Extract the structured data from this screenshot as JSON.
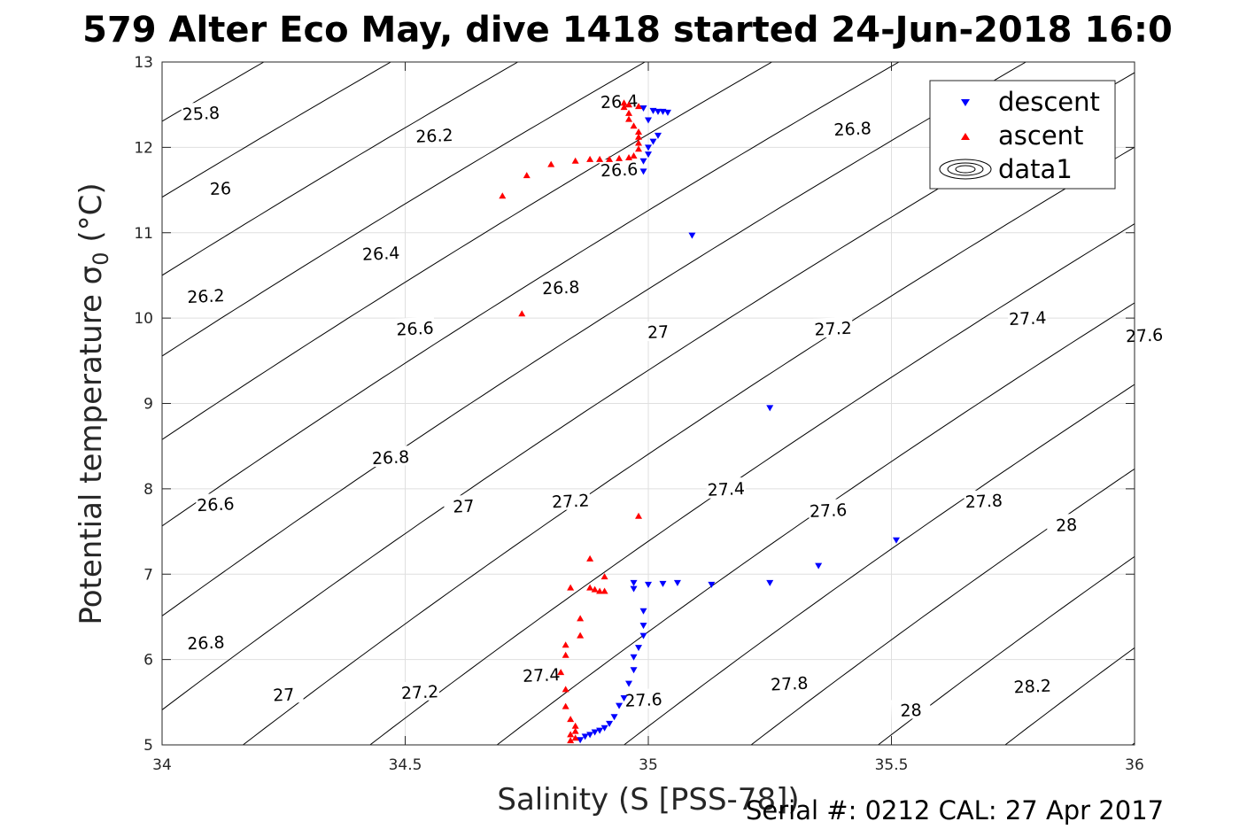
{
  "title": "579 Alter Eco May, dive 1418 started 24-Jun-2018 16:0",
  "footer": "Serial #: 0212  CAL: 27 Apr 2017",
  "chart_data": {
    "type": "scatter",
    "xlabel": "Salinity (S [PSS-78])",
    "ylabel": "Potential temperature σ",
    "ylabel_subscript": "0",
    "ylabel_unit": " (°C)",
    "xlim": [
      34,
      36
    ],
    "ylim": [
      5,
      13
    ],
    "xticks": [
      "34",
      "34.5",
      "35",
      "35.5",
      "36"
    ],
    "yticks": [
      "5",
      "6",
      "7",
      "8",
      "9",
      "10",
      "11",
      "12",
      "13"
    ],
    "grid": true,
    "legend_position": "top-right",
    "legend": [
      "descent",
      "ascent",
      "data1"
    ],
    "colors": {
      "descent": "#0000ff",
      "ascent": "#ff0000",
      "contour": "#000000",
      "grid": "#dfdfdf"
    },
    "contour_levels": [
      25.8,
      26.0,
      26.2,
      26.4,
      26.6,
      26.8,
      27.0,
      27.2,
      27.4,
      27.6,
      27.8,
      28.0,
      28.2
    ],
    "contour_labels": [
      {
        "text": "25.8",
        "x": 34.08,
        "y": 12.4
      },
      {
        "text": "26.2",
        "x": 34.56,
        "y": 12.14
      },
      {
        "text": "26.4",
        "x": 34.94,
        "y": 12.54
      },
      {
        "text": "26.8",
        "x": 35.42,
        "y": 12.22
      },
      {
        "text": "26",
        "x": 34.12,
        "y": 11.52
      },
      {
        "text": "26.6",
        "x": 34.94,
        "y": 11.74
      },
      {
        "text": "27",
        "x": 35.72,
        "y": 11.74
      },
      {
        "text": "26.4",
        "x": 34.45,
        "y": 10.76
      },
      {
        "text": "26.2",
        "x": 34.09,
        "y": 10.26
      },
      {
        "text": "26.8",
        "x": 34.82,
        "y": 10.36
      },
      {
        "text": "26.6",
        "x": 34.52,
        "y": 9.88
      },
      {
        "text": "27",
        "x": 35.02,
        "y": 9.84
      },
      {
        "text": "27.2",
        "x": 35.38,
        "y": 9.88
      },
      {
        "text": "27.4",
        "x": 35.78,
        "y": 10.0
      },
      {
        "text": "27.6",
        "x": 36.02,
        "y": 9.8
      },
      {
        "text": "26.8",
        "x": 34.47,
        "y": 8.37
      },
      {
        "text": "26.6",
        "x": 34.11,
        "y": 7.82
      },
      {
        "text": "27",
        "x": 34.62,
        "y": 7.8
      },
      {
        "text": "27.2",
        "x": 34.84,
        "y": 7.86
      },
      {
        "text": "27.4",
        "x": 35.16,
        "y": 8.0
      },
      {
        "text": "27.6",
        "x": 35.37,
        "y": 7.75
      },
      {
        "text": "27.8",
        "x": 35.69,
        "y": 7.86
      },
      {
        "text": "28",
        "x": 35.86,
        "y": 7.58
      },
      {
        "text": "26.8",
        "x": 34.09,
        "y": 6.2
      },
      {
        "text": "27",
        "x": 34.25,
        "y": 5.59
      },
      {
        "text": "27.2",
        "x": 34.53,
        "y": 5.62
      },
      {
        "text": "27.4",
        "x": 34.78,
        "y": 5.82
      },
      {
        "text": "27.6",
        "x": 34.99,
        "y": 5.53
      },
      {
        "text": "27.8",
        "x": 35.29,
        "y": 5.72
      },
      {
        "text": "28",
        "x": 35.54,
        "y": 5.41
      },
      {
        "text": "28.2",
        "x": 35.79,
        "y": 5.69
      }
    ],
    "series": [
      {
        "name": "descent",
        "marker": "triangle-down",
        "points": [
          [
            34.86,
            5.06
          ],
          [
            34.87,
            5.1
          ],
          [
            34.88,
            5.12
          ],
          [
            34.89,
            5.15
          ],
          [
            34.9,
            5.17
          ],
          [
            34.91,
            5.2
          ],
          [
            34.92,
            5.25
          ],
          [
            34.93,
            5.33
          ],
          [
            34.94,
            5.46
          ],
          [
            34.95,
            5.55
          ],
          [
            34.96,
            5.72
          ],
          [
            34.97,
            5.88
          ],
          [
            34.97,
            6.03
          ],
          [
            34.98,
            6.14
          ],
          [
            34.99,
            6.28
          ],
          [
            34.99,
            6.4
          ],
          [
            34.99,
            6.57
          ],
          [
            34.97,
            6.83
          ],
          [
            34.97,
            6.9
          ],
          [
            35.0,
            6.88
          ],
          [
            35.03,
            6.89
          ],
          [
            35.06,
            6.9
          ],
          [
            35.13,
            6.88
          ],
          [
            35.25,
            6.9
          ],
          [
            35.35,
            7.1
          ],
          [
            35.51,
            7.4
          ],
          [
            35.25,
            8.95
          ],
          [
            35.09,
            10.97
          ],
          [
            34.99,
            11.72
          ],
          [
            34.99,
            11.84
          ],
          [
            35.0,
            11.92
          ],
          [
            35.0,
            12.0
          ],
          [
            35.01,
            12.07
          ],
          [
            35.02,
            12.14
          ],
          [
            35.0,
            12.32
          ],
          [
            34.99,
            12.46
          ],
          [
            35.01,
            12.43
          ],
          [
            35.02,
            12.42
          ],
          [
            35.03,
            12.42
          ],
          [
            35.04,
            12.41
          ]
        ]
      },
      {
        "name": "ascent",
        "marker": "triangle-up",
        "points": [
          [
            34.84,
            5.05
          ],
          [
            34.85,
            5.08
          ],
          [
            34.84,
            5.12
          ],
          [
            34.85,
            5.16
          ],
          [
            34.85,
            5.22
          ],
          [
            34.84,
            5.3
          ],
          [
            34.83,
            5.45
          ],
          [
            34.83,
            5.65
          ],
          [
            34.82,
            5.85
          ],
          [
            34.83,
            6.05
          ],
          [
            34.83,
            6.17
          ],
          [
            34.86,
            6.28
          ],
          [
            34.86,
            6.48
          ],
          [
            34.84,
            6.84
          ],
          [
            34.88,
            6.84
          ],
          [
            34.89,
            6.82
          ],
          [
            34.9,
            6.8
          ],
          [
            34.91,
            6.8
          ],
          [
            34.91,
            6.97
          ],
          [
            34.88,
            7.18
          ],
          [
            34.98,
            7.68
          ],
          [
            34.74,
            10.05
          ],
          [
            34.7,
            11.43
          ],
          [
            34.75,
            11.67
          ],
          [
            34.8,
            11.8
          ],
          [
            34.85,
            11.84
          ],
          [
            34.88,
            11.86
          ],
          [
            34.9,
            11.86
          ],
          [
            34.92,
            11.86
          ],
          [
            34.94,
            11.87
          ],
          [
            34.96,
            11.88
          ],
          [
            34.97,
            11.9
          ],
          [
            34.98,
            11.98
          ],
          [
            34.98,
            12.05
          ],
          [
            34.98,
            12.12
          ],
          [
            34.98,
            12.18
          ],
          [
            34.97,
            12.25
          ],
          [
            34.96,
            12.33
          ],
          [
            34.96,
            12.4
          ],
          [
            34.95,
            12.47
          ],
          [
            34.95,
            12.52
          ],
          [
            34.96,
            12.5
          ],
          [
            34.98,
            12.48
          ]
        ]
      }
    ]
  }
}
